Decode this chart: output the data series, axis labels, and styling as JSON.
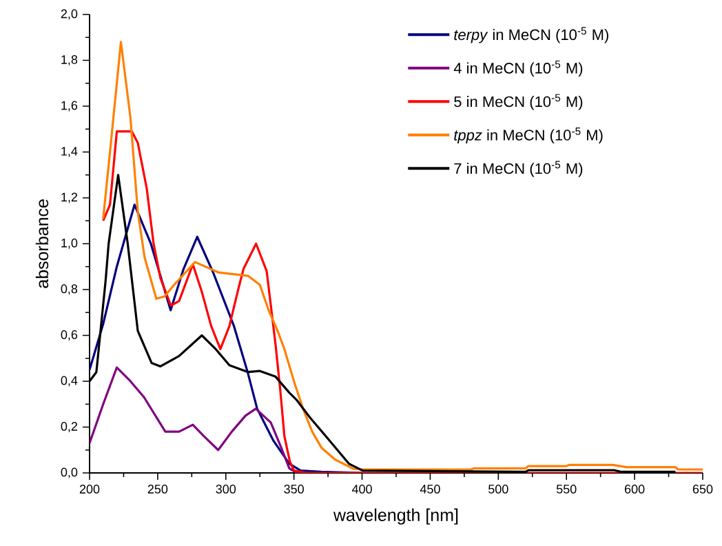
{
  "chart_data": {
    "type": "line",
    "xlabel": "wavelength [nm]",
    "ylabel": "absorbance",
    "xlim": [
      200,
      650
    ],
    "ylim": [
      0,
      2.0
    ],
    "xticks": [
      200,
      250,
      300,
      350,
      400,
      450,
      500,
      550,
      600,
      650
    ],
    "yticks": [
      {
        "value": 0,
        "label": "0,0"
      },
      {
        "value": 0.2,
        "label": "0,2"
      },
      {
        "value": 0.4,
        "label": "0,4"
      },
      {
        "value": 0.6,
        "label": "0,6"
      },
      {
        "value": 0.8,
        "label": "0,8"
      },
      {
        "value": 1.0,
        "label": "1,0"
      },
      {
        "value": 1.2,
        "label": "1,2"
      },
      {
        "value": 1.4,
        "label": "1,4"
      },
      {
        "value": 1.6,
        "label": "1,6"
      },
      {
        "value": 1.8,
        "label": "1,8"
      },
      {
        "value": 2.0,
        "label": "2,0"
      }
    ],
    "legend": "top right",
    "series": [
      {
        "name": "*terpy* in MeCN (10$^{-5}$ M)",
        "color": "#000080",
        "x": [
          200,
          210,
          220,
          233,
          245,
          259.5,
          269,
          279,
          291,
          306,
          316,
          323,
          335,
          346.6,
          355,
          370,
          400
        ],
        "values": [
          0.45,
          0.65,
          0.9,
          1.17,
          1.0,
          0.71,
          0.89,
          1.03,
          0.87,
          0.64,
          0.44,
          0.28,
          0.14,
          0.04,
          0.01,
          0.005,
          0
        ]
      },
      {
        "name": "4 in MeCN (10$^{-5}$ M)",
        "color": "#800080",
        "x": [
          200,
          210,
          220,
          230,
          240,
          255.6,
          265.7,
          275.8,
          284,
          294.4,
          304.4,
          314.5,
          322,
          333,
          340,
          346.6,
          352,
          400
        ],
        "values": [
          0.13,
          0.3,
          0.46,
          0.4,
          0.33,
          0.18,
          0.18,
          0.21,
          0.16,
          0.1,
          0.18,
          0.25,
          0.28,
          0.22,
          0.12,
          0.02,
          0,
          0
        ]
      },
      {
        "name": "5 in MeCN (10$^{-5}$ M)",
        "color": "#ff0000",
        "x": [
          210,
          215,
          220,
          231,
          235.4,
          242,
          247,
          252,
          259.7,
          265.7,
          275.8,
          282.4,
          289.3,
          296,
          302.6,
          309.5,
          313,
          322.2,
          330,
          336.5,
          340,
          343,
          347,
          350,
          360,
          400,
          650
        ],
        "values": [
          1.1,
          1.17,
          1.49,
          1.49,
          1.44,
          1.24,
          1.0,
          0.85,
          0.73,
          0.75,
          0.91,
          0.79,
          0.64,
          0.54,
          0.64,
          0.81,
          0.89,
          1.0,
          0.88,
          0.56,
          0.36,
          0.16,
          0.05,
          0.01,
          0,
          0,
          0
        ]
      },
      {
        "name": "*tppz* in MeCN (10$^{-5}$ M)",
        "color": "#ff8000",
        "x": [
          210,
          215,
          223,
          230,
          235.4,
          240.4,
          249,
          255,
          262,
          277.4,
          294.4,
          316.3,
          325,
          331.4,
          338,
          343,
          350,
          356.7,
          363.4,
          370.2,
          380.3,
          393.6,
          400,
          480,
          482,
          520,
          522,
          550,
          552,
          584,
          594,
          630,
          632,
          650
        ],
        "values": [
          1.11,
          1.4,
          1.88,
          1.55,
          1.14,
          0.94,
          0.76,
          0.77,
          0.82,
          0.92,
          0.875,
          0.86,
          0.82,
          0.71,
          0.62,
          0.54,
          0.4,
          0.28,
          0.18,
          0.11,
          0.058,
          0.018,
          0.015,
          0.015,
          0.02,
          0.02,
          0.03,
          0.03,
          0.035,
          0.035,
          0.025,
          0.025,
          0.015,
          0.015
        ]
      },
      {
        "name": "7 in MeCN (10$^{-5}$ M)",
        "color": "#000000",
        "x": [
          200,
          205,
          211.8,
          214,
          221,
          228,
          235.4,
          245.5,
          252,
          265.7,
          282.4,
          292.6,
          302.6,
          316.3,
          324.7,
          336.5,
          346.6,
          351.7,
          362,
          373.4,
          390.4,
          400.5,
          520,
          522,
          585,
          590,
          630
        ],
        "values": [
          0.4,
          0.44,
          0.84,
          1.0,
          1.3,
          1.0,
          0.62,
          0.48,
          0.465,
          0.51,
          0.6,
          0.54,
          0.47,
          0.44,
          0.445,
          0.42,
          0.35,
          0.32,
          0.24,
          0.16,
          0.04,
          0.01,
          0.005,
          0.012,
          0.012,
          0.005,
          0.005
        ]
      }
    ]
  }
}
